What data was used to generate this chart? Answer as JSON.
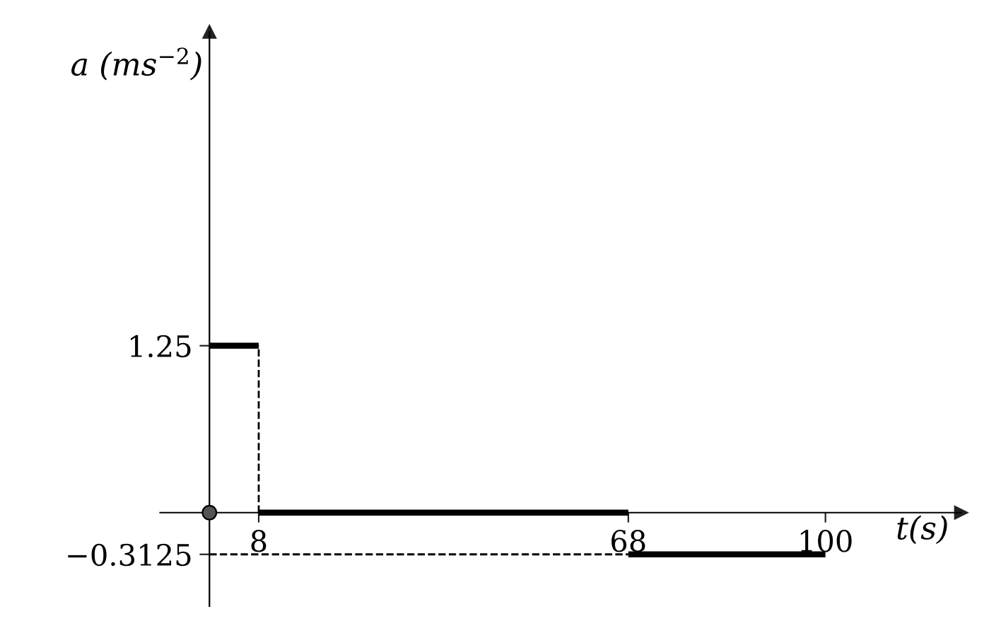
{
  "chart_data": {
    "type": "line",
    "xlabel": "t(s)",
    "ylabel": "a (ms$^{−2}$)",
    "xlim": [
      -8,
      122
    ],
    "ylim": [
      -0.7,
      3.6
    ],
    "xticks": [
      8,
      68,
      100
    ],
    "yticks": [
      1.25,
      {
        "value": -0.3125,
        "label": "−0.3125"
      }
    ],
    "grid": false,
    "legend": false,
    "line_style": "solid",
    "series": [
      {
        "x": [
          0,
          8
        ],
        "values": [
          1.25,
          1.25
        ],
        "color": "#000000"
      },
      {
        "x": [
          8,
          68
        ],
        "values": [
          0,
          0
        ],
        "color": "#000000"
      },
      {
        "x": [
          68,
          100
        ],
        "values": [
          -0.3125,
          -0.3125
        ],
        "color": "#000000"
      },
      {
        "x": [
          8,
          8
        ],
        "values": [
          0,
          1.25
        ],
        "color": "#000000",
        "line_style": "dashed"
      },
      {
        "x": [
          0,
          68
        ],
        "values": [
          -0.3125,
          -0.3125
        ],
        "color": "#000000",
        "line_style": "dashed"
      },
      {
        "type": "scatter",
        "x": [
          0
        ],
        "values": [
          0
        ],
        "color": "#555555",
        "marker": "circle"
      }
    ]
  }
}
